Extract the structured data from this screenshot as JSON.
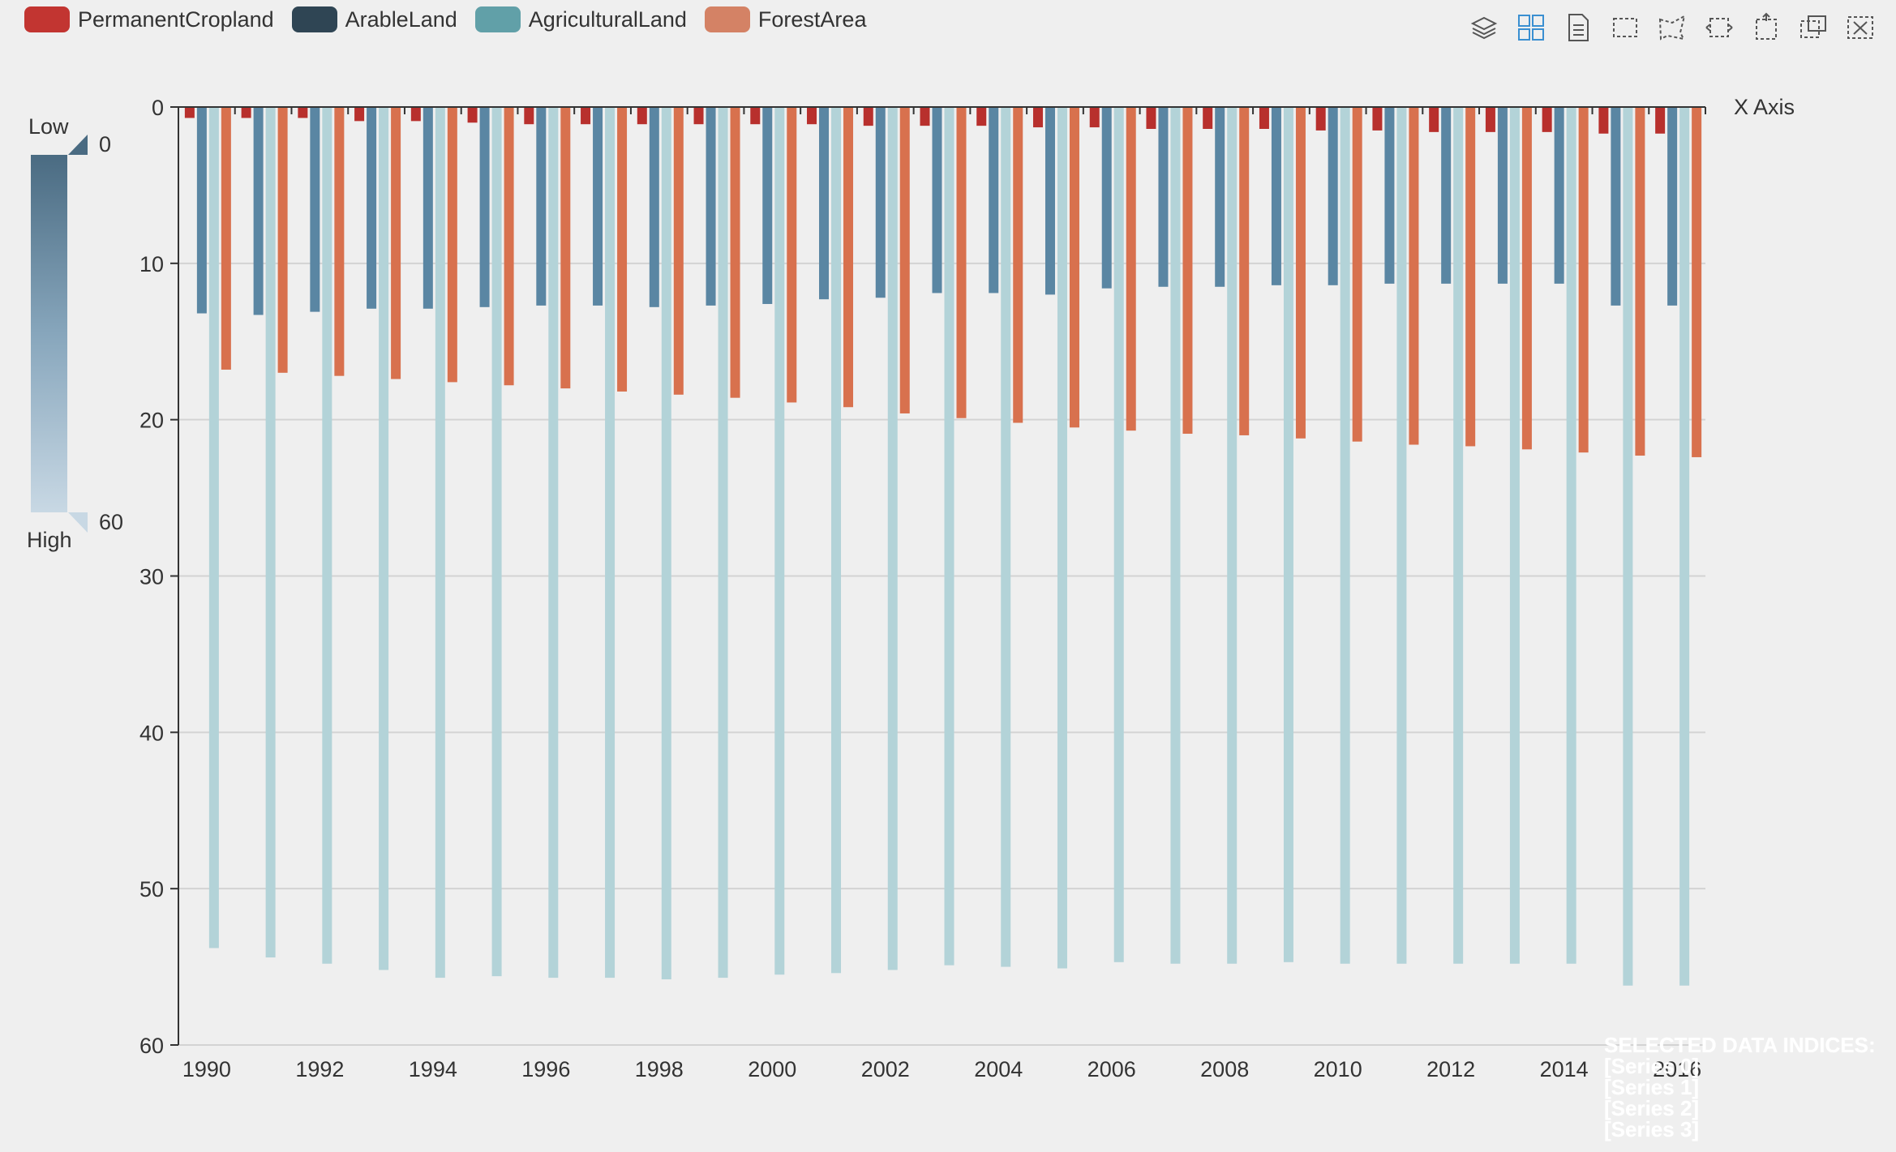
{
  "legend": [
    {
      "name": "PermanentCropland",
      "color": "#c23531"
    },
    {
      "name": "ArableLand",
      "color": "#2f4554"
    },
    {
      "name": "AgriculturalLand",
      "color": "#61a0a8"
    },
    {
      "name": "ForestArea",
      "color": "#d48265"
    }
  ],
  "toolbox": [
    "layers-icon",
    "grid-icon",
    "data-view-icon",
    "rect-select-icon",
    "lasso-select-icon",
    "keep-select-icon",
    "clear-select-icon",
    "zoom-icon",
    "zoom-reset-icon"
  ],
  "visual_map": {
    "low_label": "Low",
    "high_label": "High",
    "min_label": "0",
    "max_label": "60",
    "color_dark": "#4a6b82",
    "color_light": "#c8d8e4"
  },
  "x_axis_name": "X Axis",
  "selection": {
    "title": "SELECTED DATA INDICES:",
    "lines": [
      "[Series 0]",
      "[Series 1]",
      "[Series 2]",
      "[Series 3]"
    ]
  },
  "chart_data": {
    "type": "bar",
    "y_inverse": true,
    "ylim": [
      0,
      60
    ],
    "y_ticks": [
      "0",
      "10",
      "20",
      "30",
      "40",
      "50",
      "60"
    ],
    "x_tick_labels": [
      "1990",
      "1992",
      "1994",
      "1996",
      "1998",
      "2000",
      "2002",
      "2004",
      "2006",
      "2008",
      "2010",
      "2012",
      "2014",
      "2016"
    ],
    "categories": [
      "1990",
      "1991",
      "1992",
      "1993",
      "1994",
      "1995",
      "1996",
      "1997",
      "1998",
      "1999",
      "2000",
      "2001",
      "2002",
      "2003",
      "2004",
      "2005",
      "2006",
      "2007",
      "2008",
      "2009",
      "2010",
      "2011",
      "2012",
      "2013",
      "2014",
      "2015",
      "2016"
    ],
    "series": [
      {
        "name": "PermanentCropland",
        "color": "#b8302d",
        "values": [
          0.7,
          0.7,
          0.7,
          0.9,
          0.9,
          1.0,
          1.1,
          1.1,
          1.1,
          1.1,
          1.1,
          1.1,
          1.2,
          1.2,
          1.2,
          1.3,
          1.3,
          1.4,
          1.4,
          1.4,
          1.5,
          1.5,
          1.6,
          1.6,
          1.6,
          1.7,
          1.7
        ]
      },
      {
        "name": "ArableLand",
        "color": "#5a86a3",
        "values": [
          13.2,
          13.3,
          13.1,
          12.9,
          12.9,
          12.8,
          12.7,
          12.7,
          12.8,
          12.7,
          12.6,
          12.3,
          12.2,
          11.9,
          11.9,
          12.0,
          11.6,
          11.5,
          11.5,
          11.4,
          11.4,
          11.3,
          11.3,
          11.3,
          11.3,
          12.7,
          12.7
        ]
      },
      {
        "name": "AgriculturalLand",
        "color": "#b3d3d8",
        "values": [
          53.8,
          54.4,
          54.8,
          55.2,
          55.7,
          55.6,
          55.7,
          55.7,
          55.8,
          55.7,
          55.5,
          55.4,
          55.2,
          54.9,
          55.0,
          55.1,
          54.7,
          54.8,
          54.8,
          54.7,
          54.8,
          54.8,
          54.8,
          54.8,
          54.8,
          56.2,
          56.2
        ]
      },
      {
        "name": "ForestArea",
        "color": "#d8714e",
        "values": [
          16.8,
          17.0,
          17.2,
          17.4,
          17.6,
          17.8,
          18.0,
          18.2,
          18.4,
          18.6,
          18.9,
          19.2,
          19.6,
          19.9,
          20.2,
          20.5,
          20.7,
          20.9,
          21.0,
          21.2,
          21.4,
          21.6,
          21.7,
          21.9,
          22.1,
          22.3,
          22.4
        ]
      }
    ]
  }
}
